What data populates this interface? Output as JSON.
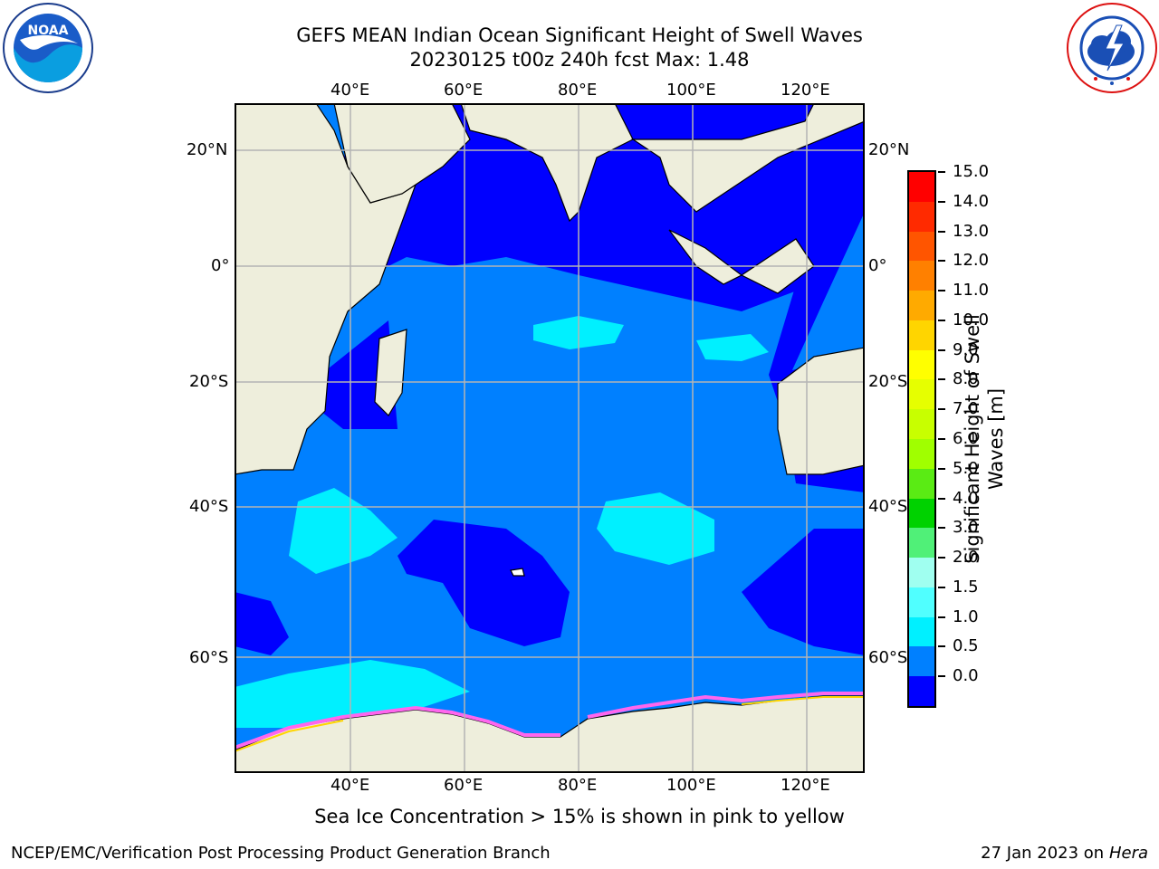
{
  "header": {
    "title_line1": "GEFS MEAN Indian Ocean Significant Height of Swell Waves",
    "title_line2": "20230125 t00z 240h fcst   Max: 1.48"
  },
  "logos": {
    "left": {
      "text": "NOAA",
      "ring_text": "NATIONAL OCEANIC AND ATMOSPHERIC ADMINISTRATION · U.S. DEPARTMENT OF COMMERCE"
    },
    "right": {
      "ring_text": "NATIONAL WEATHER SERVICE"
    }
  },
  "map": {
    "lon_labels": [
      "40°E",
      "60°E",
      "80°E",
      "100°E",
      "120°E"
    ],
    "lat_labels": [
      "20°N",
      "0°",
      "20°S",
      "40°S",
      "60°S"
    ]
  },
  "colorbar": {
    "label_line1": "Significant Height of Swell",
    "label_line2": "Waves [m]",
    "ticks": [
      "15.0",
      "14.0",
      "13.0",
      "12.0",
      "11.0",
      "10.0",
      "9.0",
      "8.0",
      "7.0",
      "6.0",
      "5.0",
      "4.0",
      "3.0",
      "2.0",
      "1.5",
      "1.0",
      "0.5",
      "0.0"
    ],
    "colors": [
      "#ff0000",
      "#ff2a00",
      "#ff5500",
      "#ff8000",
      "#ffaa00",
      "#ffd500",
      "#ffff00",
      "#e6ff00",
      "#c8ff00",
      "#a0ff00",
      "#5aeb14",
      "#00d200",
      "#50f078",
      "#a0fff0",
      "#50ffff",
      "#00f0ff",
      "#0080ff",
      "#0000ff"
    ]
  },
  "note": "Sea Ice Concentration > 15% is shown in pink to yellow",
  "footer": {
    "left": "NCEP/EMC/Verification Post Processing Product Generation Branch",
    "right_prefix": "27 Jan 2023 on ",
    "right_host": "Hera"
  }
}
